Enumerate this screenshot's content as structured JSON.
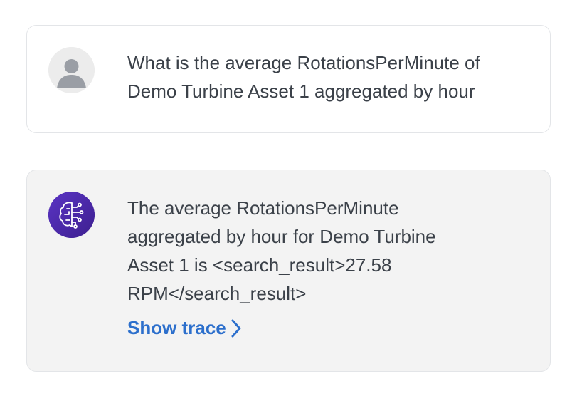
{
  "messages": {
    "user": {
      "text": "What is the average RotationsPerMinute of\nDemo Turbine Asset 1 aggregated by hour",
      "avatar_icon": "user-avatar-icon"
    },
    "assistant": {
      "text": "The average RotationsPerMinute\naggregated by hour for Demo Turbine\nAsset 1 is <search_result>27.58\nRPM</search_result>",
      "avatar_icon": "ai-brain-icon",
      "show_trace_label": "Show trace"
    }
  },
  "colors": {
    "link": "#2c6fcc",
    "assistant_avatar_bg": "#4b2ba6",
    "assistant_bubble_bg": "#f3f3f3",
    "text": "#3b4149"
  }
}
